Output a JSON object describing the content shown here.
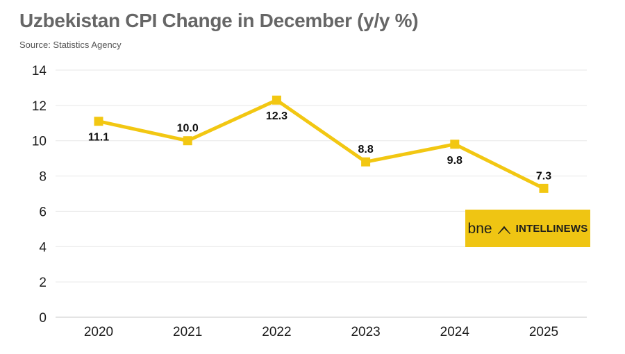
{
  "header": {
    "title": "Uzbekistan CPI Change in December (y/y %)",
    "source": "Source: Statistics Agency"
  },
  "chart_data": {
    "type": "line",
    "title": "Uzbekistan CPI Change in December (y/y %)",
    "subtitle": "Source: Statistics Agency",
    "categories": [
      "2020",
      "2021",
      "2022",
      "2023",
      "2024",
      "2025"
    ],
    "values": [
      11.1,
      10.0,
      12.3,
      8.8,
      9.8,
      7.3
    ],
    "point_labels": [
      "11.1",
      "10.0",
      "12.3",
      "8.8",
      "9.8",
      "7.3"
    ],
    "label_positions": [
      "below",
      "above",
      "below",
      "above",
      "below",
      "above"
    ],
    "xlabel": "",
    "ylabel": "",
    "ylim": [
      0,
      14
    ],
    "ytick_step": 2,
    "yticks": [
      0,
      2,
      4,
      6,
      8,
      10,
      12,
      14
    ],
    "grid": "horizontal",
    "legend": "none",
    "marker": "square",
    "line_color": "#F2C712"
  },
  "logo": {
    "bne": "bne",
    "name": "INTELLINEWS",
    "bg_color": "#EFC513"
  },
  "colors": {
    "background": "#ffffff",
    "title_text": "#666666",
    "source_text": "#555555",
    "axis_text": "#1a1a1a",
    "data_label_text": "#0d0d0d",
    "gridline": "#e7e7e7",
    "zero_line": "#c9c9c9",
    "line": "#F2C712",
    "logo_text": "#1d1d1b"
  }
}
